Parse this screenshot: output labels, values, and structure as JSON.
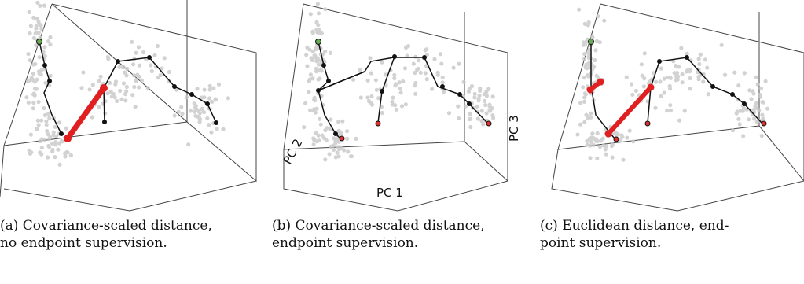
{
  "panels": [
    {
      "id": "a",
      "caption_line1": "(a) Covariance-scaled distance,",
      "caption_line2": "no endpoint supervision."
    },
    {
      "id": "b",
      "caption_line1": "(b) Covariance-scaled distance,",
      "caption_line2": "endpoint supervision.",
      "axis_labels": {
        "pc1": "PC 1",
        "pc2": "PC 2",
        "pc3": "PC 3"
      }
    },
    {
      "id": "c",
      "caption_line1": "(c)  Euclidean  distance,  end-",
      "caption_line2": "point supervision."
    }
  ],
  "colors": {
    "box": "#444444",
    "path": "#111111",
    "highlight": "#e02020",
    "start_node": "#66aa55",
    "end_node": "#e03030",
    "scatter": "#bbbbbb"
  }
}
